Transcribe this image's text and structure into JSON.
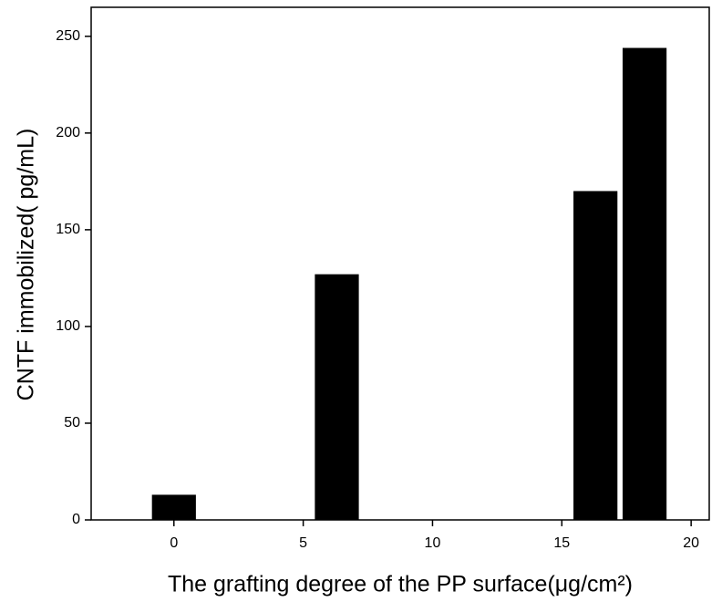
{
  "chart_data": {
    "type": "bar",
    "x_label": "The grafting degree of the PP surface(μg/cm²)",
    "y_label": "CNTF immobilized(  pg/mL)",
    "x": [
      0,
      6.3,
      16.3,
      18.2
    ],
    "values": [
      13,
      127,
      170,
      244
    ],
    "bar_width": 1.7,
    "color": "#000000",
    "xlim": [
      -3.2,
      20.7
    ],
    "xticks": [
      0,
      5,
      10,
      15,
      20
    ],
    "ylim": [
      0,
      265
    ],
    "yticks": [
      0,
      50,
      100,
      150,
      200,
      250
    ],
    "grid": false
  }
}
